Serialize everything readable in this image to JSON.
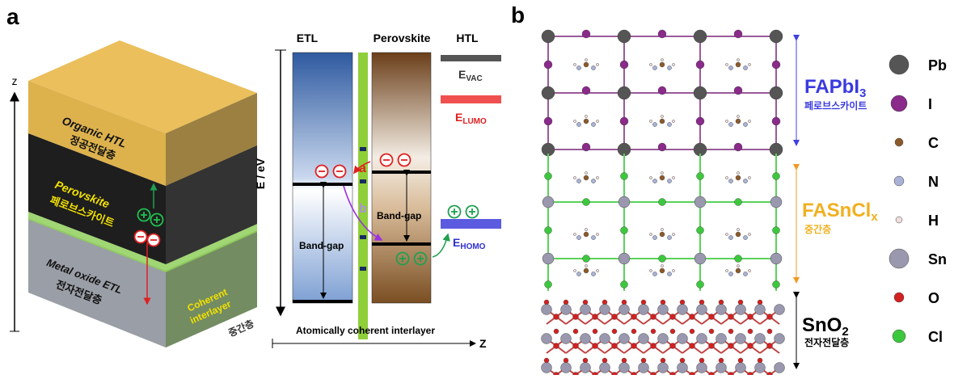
{
  "panel_a": {
    "label": "a",
    "axis_label": "z",
    "layers": {
      "htl": [
        "Organic HTL",
        "정공전달층"
      ],
      "perovskite": [
        "Perovskite",
        "페로브스카이트"
      ],
      "etl": [
        "Metal oxide ETL",
        "전자전달층"
      ],
      "interlayer": [
        "Coherent",
        "interlayer",
        "중간층"
      ]
    },
    "band": {
      "etl": "ETL",
      "perovskite": "Perovskite",
      "htl": "HTL",
      "y_axis": "E / eV",
      "x_axis": "Z",
      "vac": {
        "main": "E",
        "sub": "VAC"
      },
      "lumo": {
        "main": "E",
        "sub": "LUMO"
      },
      "homo": {
        "main": "E",
        "sub": "HOMO"
      },
      "path_a": "a",
      "path_b": "b",
      "gap": [
        "Band-gap",
        "Band-gap"
      ],
      "interlayer": "Atomically coherent  interlayer"
    }
  },
  "panel_b": {
    "label": "b",
    "fapbi": {
      "main": "FAPbI",
      "sub": "3",
      "ko": "페로브스카이트"
    },
    "fasncl": {
      "main": "FASnCl",
      "sub": "x",
      "ko": "중간층"
    },
    "sno": {
      "main": "SnO",
      "sub": "2",
      "ko": "전자전달층"
    },
    "legend": [
      {
        "name": "Pb",
        "color": "#555555"
      },
      {
        "name": "I",
        "color": "#8a2a8a"
      },
      {
        "name": "C",
        "color": "#8b5a2b"
      },
      {
        "name": "N",
        "color": "#a9b2d6"
      },
      {
        "name": "H",
        "color": "#f1dede"
      },
      {
        "name": "Sn",
        "color": "#9a98ae"
      },
      {
        "name": "O",
        "color": "#d42020"
      },
      {
        "name": "Cl",
        "color": "#3cc83c"
      }
    ]
  }
}
